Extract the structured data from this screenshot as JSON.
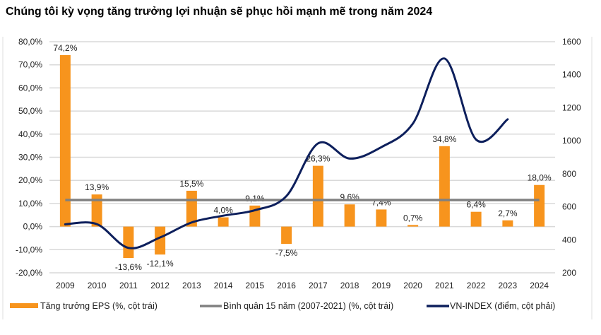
{
  "chart_data": {
    "type": "bar+line",
    "title": "Chúng tôi kỳ vọng tăng trưởng lợi nhuận sẽ phục hồi mạnh mẽ trong năm 2024",
    "categories": [
      "2009",
      "2010",
      "2011",
      "2012",
      "2013",
      "2014",
      "2015",
      "2016",
      "2017",
      "2018",
      "2019",
      "2020",
      "2021",
      "2022",
      "2023",
      "2024"
    ],
    "left_axis": {
      "range": [
        -20,
        80
      ],
      "ticks": [
        "-20,0%",
        "-10,0%",
        "0,0%",
        "10,0%",
        "20,0%",
        "30,0%",
        "40,0%",
        "50,0%",
        "60,0%",
        "70,0%",
        "80,0%"
      ]
    },
    "right_axis": {
      "range": [
        200,
        1600
      ],
      "ticks": [
        "200",
        "400",
        "600",
        "800",
        "1000",
        "1200",
        "1400",
        "1600"
      ]
    },
    "grid": true,
    "legend_position": "bottom",
    "series": [
      {
        "name": "Tăng trưởng EPS (%, cột trái)",
        "type": "bar",
        "axis": "left",
        "color": "#F7941D",
        "values": [
          74.2,
          13.9,
          -13.6,
          -12.1,
          15.5,
          4.0,
          9.1,
          -7.5,
          26.3,
          9.6,
          7.4,
          0.7,
          34.8,
          6.4,
          2.7,
          18.0
        ],
        "labels": [
          "74,2%",
          "13,9%",
          "-13,6%",
          "-12,1%",
          "15,5%",
          "4,0%",
          "9,1%",
          "-7,5%",
          "26,3%",
          "9,6%",
          "7,4%",
          "0,7%",
          "34,8%",
          "6,4%",
          "2,7%",
          "18,0%"
        ]
      },
      {
        "name": "Bình quân 15 năm (2007-2021) (%, cột trái)",
        "type": "line",
        "axis": "left",
        "color": "#808080",
        "value": 11.5
      },
      {
        "name": "VN-INDEX (điểm, cột phải)",
        "type": "line",
        "axis": "right",
        "color": "#0D1F5C",
        "values": [
          494,
          495,
          351,
          414,
          505,
          546,
          579,
          665,
          984,
          892,
          961,
          1104,
          1498,
          1007,
          1130,
          null
        ]
      }
    ]
  }
}
